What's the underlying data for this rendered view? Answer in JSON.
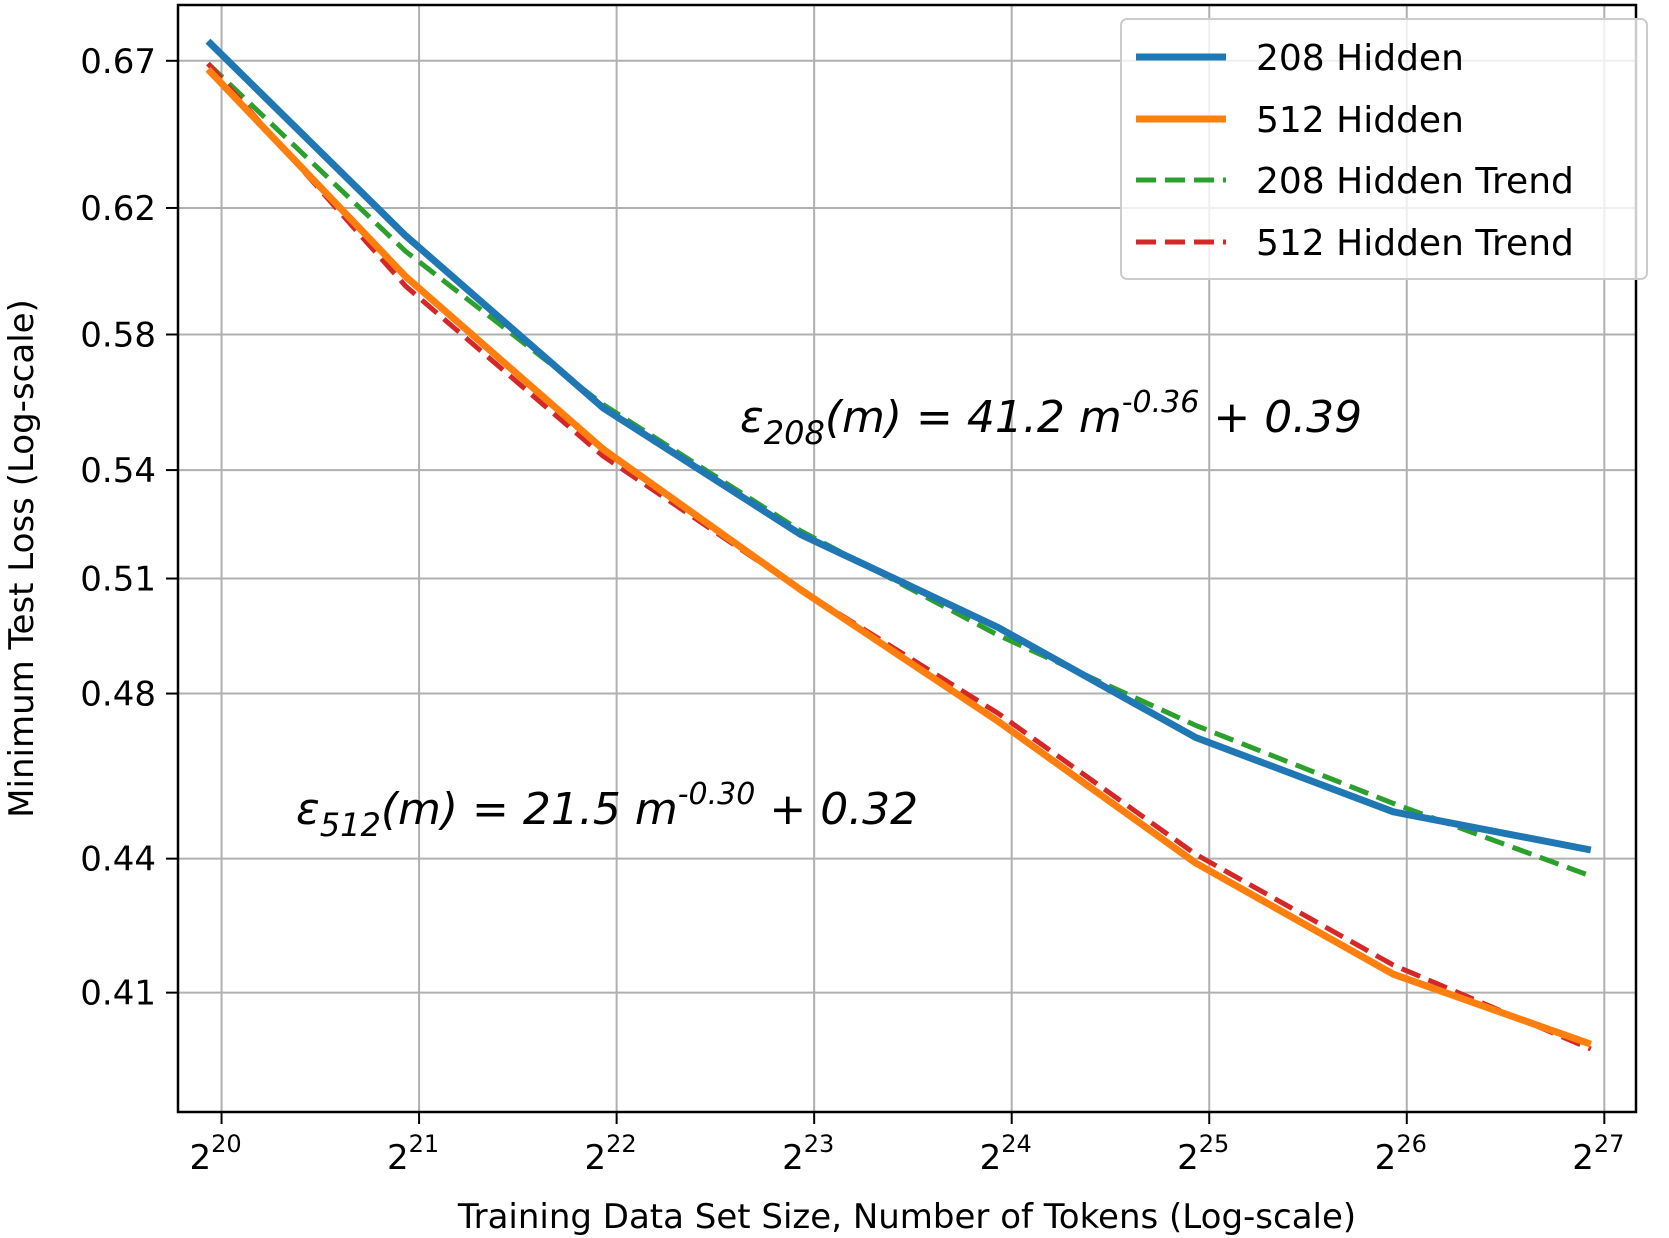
{
  "chart_data": {
    "type": "line",
    "title": "",
    "xlabel": "Training Data Set Size, Number of Tokens (Log-scale)",
    "ylabel": "Minimum Test Loss (Log-scale)",
    "x_scale": "log2",
    "y_scale": "log",
    "xlim": [
      900000,
      150000000
    ],
    "ylim": [
      0.385,
      0.69
    ],
    "grid": true,
    "legend_position": "top-right",
    "x_ticks": [
      {
        "value": 1048576,
        "base": "2",
        "exp": "20"
      },
      {
        "value": 2097152,
        "base": "2",
        "exp": "21"
      },
      {
        "value": 4194304,
        "base": "2",
        "exp": "22"
      },
      {
        "value": 8388608,
        "base": "2",
        "exp": "23"
      },
      {
        "value": 16777216,
        "base": "2",
        "exp": "24"
      },
      {
        "value": 33554432,
        "base": "2",
        "exp": "25"
      },
      {
        "value": 67108864,
        "base": "2",
        "exp": "26"
      },
      {
        "value": 134217728,
        "base": "2",
        "exp": "27"
      }
    ],
    "y_ticks": [
      {
        "value": 0.67,
        "label": "0.67"
      },
      {
        "value": 0.62,
        "label": "0.62"
      },
      {
        "value": 0.58,
        "label": "0.58"
      },
      {
        "value": 0.54,
        "label": "0.54"
      },
      {
        "value": 0.51,
        "label": "0.51"
      },
      {
        "value": 0.48,
        "label": "0.48"
      },
      {
        "value": 0.44,
        "label": "0.44"
      },
      {
        "value": 0.41,
        "label": "0.41"
      }
    ],
    "series": [
      {
        "name": "208 Hidden",
        "color": "#1f77b4",
        "style": "solid",
        "x": [
          1000000,
          2000000,
          4000000,
          8000000,
          16000000,
          32000000,
          64000000,
          128000000
        ],
        "y": [
          0.677,
          0.611,
          0.558,
          0.522,
          0.497,
          0.469,
          0.451,
          0.442
        ]
      },
      {
        "name": "512 Hidden",
        "color": "#ff7f0e",
        "style": "solid",
        "x": [
          1000000,
          2000000,
          4000000,
          8000000,
          16000000,
          32000000,
          64000000,
          128000000
        ],
        "y": [
          0.667,
          0.598,
          0.546,
          0.507,
          0.473,
          0.439,
          0.414,
          0.399
        ]
      },
      {
        "name": "208 Hidden Trend",
        "color": "#2ca02c",
        "style": "dashed",
        "x": [
          1000000,
          2000000,
          4000000,
          8000000,
          16000000,
          32000000,
          64000000,
          128000000
        ],
        "y": [
          0.669,
          0.606,
          0.559,
          0.523,
          0.495,
          0.472,
          0.453,
          0.436
        ]
      },
      {
        "name": "512 Hidden Trend",
        "color": "#d62728",
        "style": "dashed",
        "x": [
          1000000,
          2000000,
          4000000,
          8000000,
          16000000,
          32000000,
          64000000,
          128000000
        ],
        "y": [
          0.669,
          0.595,
          0.544,
          0.507,
          0.475,
          0.441,
          0.416,
          0.398
        ]
      }
    ],
    "annotations": [
      {
        "id": "fit208",
        "epsilon": "ε",
        "sub": "208",
        "mid": "(m) = 41.2 m",
        "sup": "-0.36",
        "tail": " + 0.39"
      },
      {
        "id": "fit512",
        "epsilon": "ε",
        "sub": "512",
        "mid": "(m) = 21.5 m",
        "sup": "-0.30",
        "tail": " + 0.32"
      }
    ]
  }
}
